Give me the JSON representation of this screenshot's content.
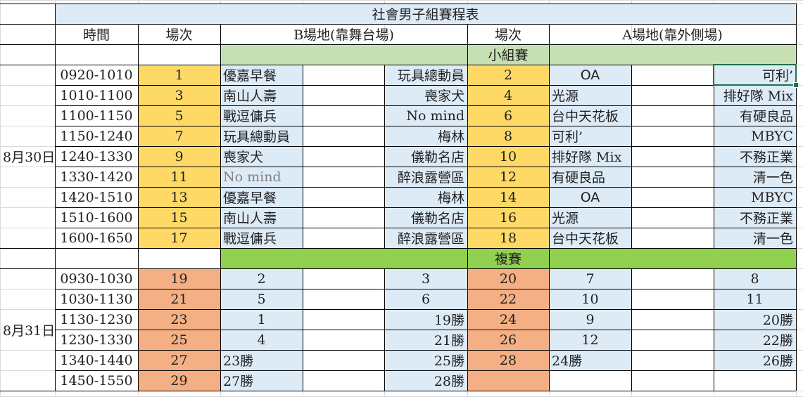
{
  "sheet": {
    "title": "社會男子組賽程表",
    "headers": {
      "time": "時間",
      "match_no": "場次",
      "venue_b": "B場地(靠舞台場)",
      "match_no_2": "場次",
      "venue_a": "A場地(靠外側場)"
    },
    "colors": {
      "title_bg": "#ddebf7",
      "team_bg": "#ddebf7",
      "group_num_bg": "#ffd966",
      "playoff_num_bg": "#f4b084",
      "group_band_bg": "#c6e0b4",
      "playoff_band_bg": "#92d050",
      "selection": "#217346"
    },
    "sections": {
      "group_label": "小組賽",
      "playoff_label": "複賽"
    },
    "days": [
      {
        "date": "8月30日",
        "rows": [
          {
            "time": "0920-1010",
            "b_no": "1",
            "b_team1": "優嘉早餐",
            "b_team2": "玩具總動員",
            "a_no": "2",
            "a_team1": "OA",
            "a_team2": "可利’"
          },
          {
            "time": "1010-1100",
            "b_no": "3",
            "b_team1": "南山人壽",
            "b_team2": "喪家犬",
            "a_no": "4",
            "a_team1": "光源",
            "a_team2": "排好隊 Mix"
          },
          {
            "time": "1100-1150",
            "b_no": "5",
            "b_team1": "戰逗傭兵",
            "b_team2": "No mind",
            "a_no": "6",
            "a_team1": "台中天花板",
            "a_team2": "有硬良品"
          },
          {
            "time": "1150-1240",
            "b_no": "7",
            "b_team1": "玩具總動員",
            "b_team2": "梅林",
            "a_no": "8",
            "a_team1": "可利’",
            "a_team2": "MBYC"
          },
          {
            "time": "1240-1330",
            "b_no": "9",
            "b_team1": "喪家犬",
            "b_team2": "儀勒名店",
            "a_no": "10",
            "a_team1": "排好隊 Mix",
            "a_team2": "不務正業"
          },
          {
            "time": "1330-1420",
            "b_no": "11",
            "b_team1": "No mind",
            "b_team2": "醉浪露營區",
            "a_no": "12",
            "a_team1": "有硬良品",
            "a_team2": "清一色"
          },
          {
            "time": "1420-1510",
            "b_no": "13",
            "b_team1": "優嘉早餐",
            "b_team2": "梅林",
            "a_no": "14",
            "a_team1": "OA",
            "a_team2": "MBYC"
          },
          {
            "time": "1510-1600",
            "b_no": "15",
            "b_team1": "南山人壽",
            "b_team2": "儀勒名店",
            "a_no": "16",
            "a_team1": "光源",
            "a_team2": "不務正業"
          },
          {
            "time": "1600-1650",
            "b_no": "17",
            "b_team1": "戰逗傭兵",
            "b_team2": "醉浪露營區",
            "a_no": "18",
            "a_team1": "台中天花板",
            "a_team2": "清一色"
          }
        ]
      },
      {
        "date": "8月31日",
        "rows": [
          {
            "time": "0930-1030",
            "b_no": "19",
            "b_team1": "2",
            "b_team2": "3",
            "a_no": "20",
            "a_team1": "7",
            "a_team2": "8"
          },
          {
            "time": "1030-1130",
            "b_no": "21",
            "b_team1": "5",
            "b_team2": "6",
            "a_no": "22",
            "a_team1": "10",
            "a_team2": "11"
          },
          {
            "time": "1130-1230",
            "b_no": "23",
            "b_team1": "1",
            "b_team2": "19勝",
            "a_no": "24",
            "a_team1": "9",
            "a_team2": "20勝"
          },
          {
            "time": "1230-1330",
            "b_no": "25",
            "b_team1": "4",
            "b_team2": "21勝",
            "a_no": "26",
            "a_team1": "12",
            "a_team2": "22勝"
          },
          {
            "time": "1340-1440",
            "b_no": "27",
            "b_team1": "23勝",
            "b_team2": "25勝",
            "a_no": "28",
            "a_team1": "24勝",
            "a_team2": "26勝"
          },
          {
            "time": "1450-1550",
            "b_no": "29",
            "b_team1": "27勝",
            "b_team2": "28勝",
            "a_no": "",
            "a_team1": "",
            "a_team2": ""
          }
        ]
      }
    ]
  }
}
